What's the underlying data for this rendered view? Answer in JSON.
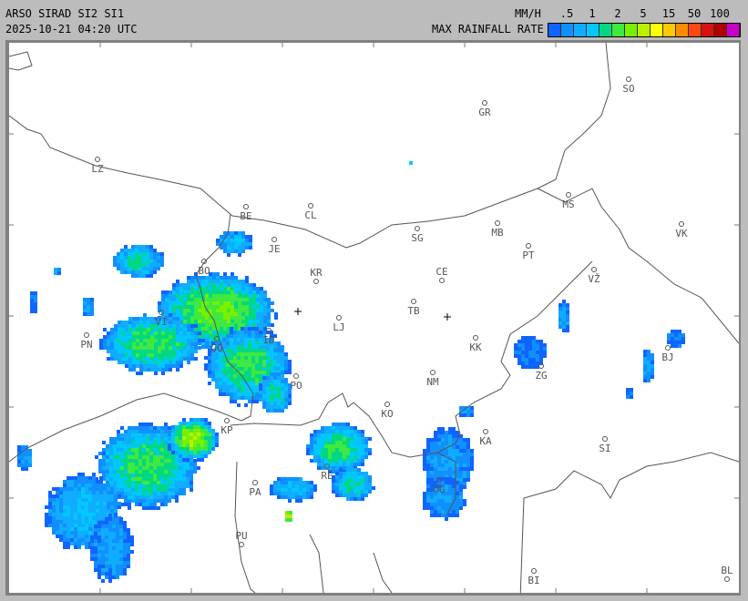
{
  "header": {
    "title": "ARSO SIRAD SI2 SI1",
    "datetime": "2025-10-21 04:20 UTC",
    "units": "MM/H",
    "legend_title": "MAX RAINFALL RATE",
    "legend_ticks": [
      ".5",
      "1",
      "2",
      "5",
      "15",
      "50",
      "100"
    ],
    "legend_colors": [
      "#1064ff",
      "#1090ff",
      "#10acff",
      "#00c8ff",
      "#00d884",
      "#40e840",
      "#78f000",
      "#bcf000",
      "#ffff00",
      "#ffc800",
      "#ff8c00",
      "#ff4810",
      "#d81010",
      "#b00000",
      "#c800c8"
    ]
  },
  "map": {
    "cities": [
      "SO",
      "GR",
      "LZ",
      "BE",
      "CL",
      "MS",
      "MB",
      "VK",
      "SG",
      "JE",
      "PT",
      "BO",
      "KR",
      "CE",
      "VŽ",
      "TB",
      "VI",
      "LJ",
      "PN",
      "ID",
      "KK",
      "GO",
      "BJ",
      "ZG",
      "NM",
      "PO",
      "KO",
      "KA",
      "KP",
      "SI",
      "RE",
      "OG",
      "PA",
      "PU",
      "BI",
      "BL"
    ],
    "radar_markers": [
      "cross",
      "cross"
    ]
  }
}
